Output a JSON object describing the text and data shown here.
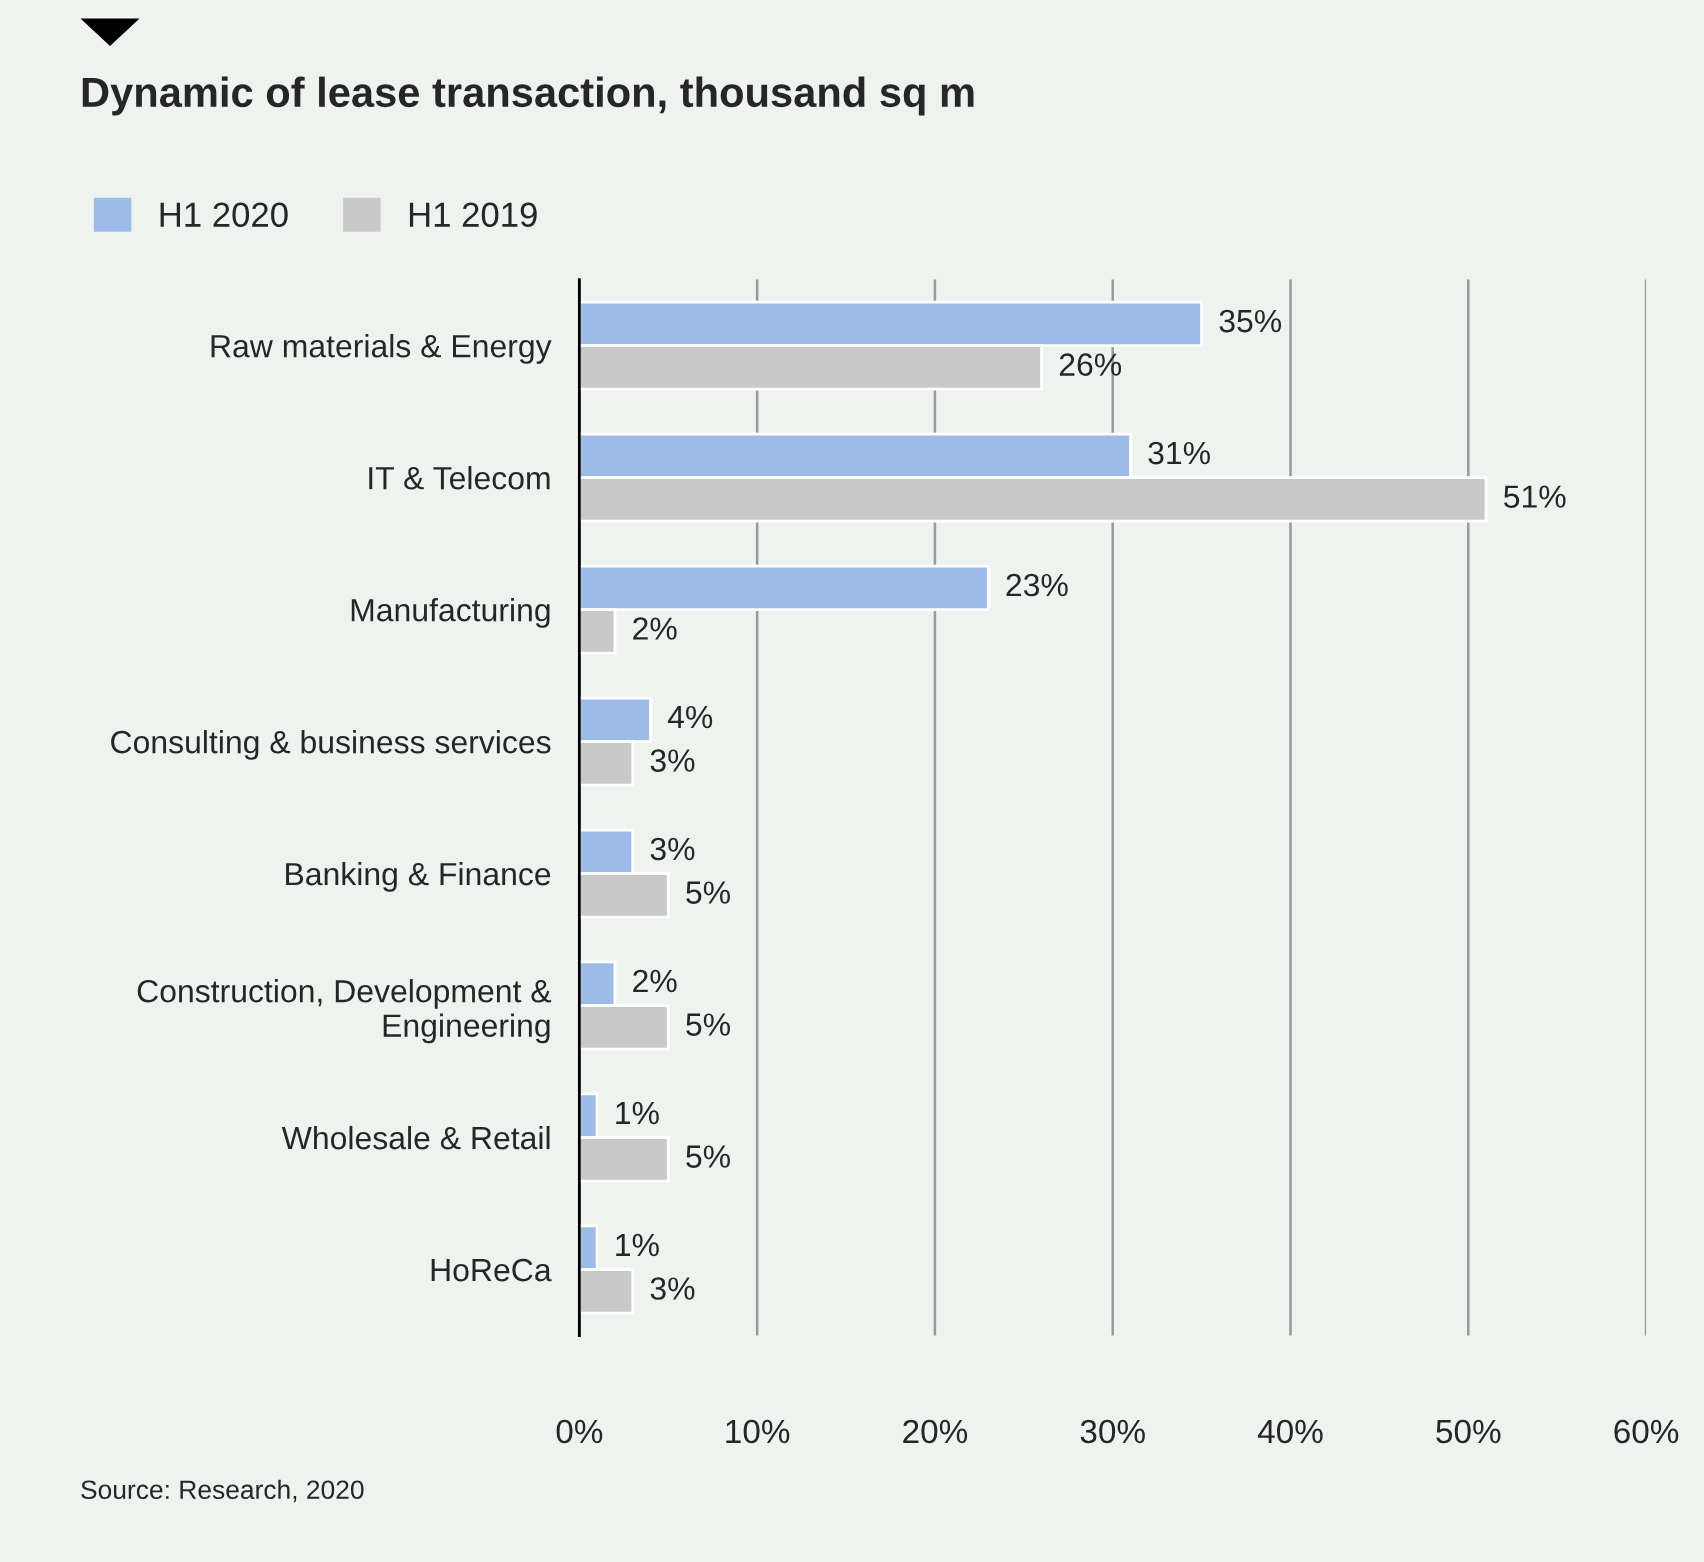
{
  "chart_data": {
    "type": "bar",
    "orientation": "horizontal",
    "title": "Dynamic of lease transaction, thousand sq m",
    "categories": [
      "Raw materials & Energy",
      "IT & Telecom",
      "Manufacturing",
      "Consulting & business services",
      "Banking & Finance",
      "Construction, Development &\nEngineering",
      "Wholesale & Retail",
      "HoReCa"
    ],
    "series": [
      {
        "name": "H1 2020",
        "color": "#9dbbe8",
        "values": [
          35,
          31,
          23,
          4,
          3,
          2,
          1,
          1
        ],
        "value_labels": [
          "35%",
          "31%",
          "23%",
          "4%",
          "3%",
          "2%",
          "1%",
          "1%"
        ]
      },
      {
        "name": "H1 2019",
        "color": "#c9c9c9",
        "values": [
          26,
          51,
          2,
          3,
          5,
          5,
          5,
          3
        ],
        "value_labels": [
          "26%",
          "51%",
          "2%",
          "3%",
          "5%",
          "5%",
          "5%",
          "3%"
        ]
      }
    ],
    "xlim": [
      0,
      60
    ],
    "xticks": [
      {
        "value": 0,
        "label": "0%"
      },
      {
        "value": 10,
        "label": "10%"
      },
      {
        "value": 20,
        "label": "20%"
      },
      {
        "value": 30,
        "label": "30%"
      },
      {
        "value": 40,
        "label": "40%"
      },
      {
        "value": 50,
        "label": "50%"
      },
      {
        "value": 60,
        "label": "60%"
      }
    ],
    "grid": "x",
    "legend": "top left",
    "annotations": [
      "Source: Research, 2020"
    ]
  }
}
